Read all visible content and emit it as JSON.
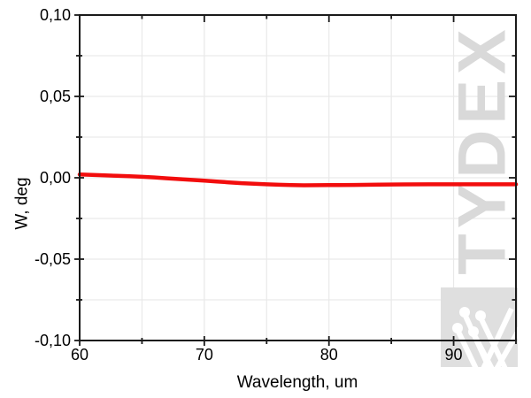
{
  "figure": {
    "background": "#ffffff",
    "frame_color": "#1a1a1a",
    "grid_color": "#e9e9e9",
    "text_color": "#000000"
  },
  "chart_data": {
    "type": "line",
    "title": "",
    "xlabel": "Wavelength, um",
    "ylabel": "W, deg",
    "xlim": [
      60,
      95
    ],
    "ylim": [
      -0.1,
      0.1
    ],
    "x_major_ticks": [
      60,
      70,
      80,
      90
    ],
    "x_minor_ticks": [
      65,
      75,
      85,
      95
    ],
    "y_major_ticks": [
      0.1,
      0.05,
      0.0,
      -0.05,
      -0.1
    ],
    "y_minor_ticks": [
      0.075,
      0.025,
      -0.025,
      -0.075
    ],
    "x_tick_labels": [
      "60",
      "70",
      "80",
      "90"
    ],
    "y_tick_labels": [
      "0,10",
      "0,05",
      "0,00",
      "-0,05",
      "-0,10"
    ],
    "grid": true,
    "legend": "none",
    "series": [
      {
        "name": "W",
        "color": "#f20d0d",
        "line_width": 4.5,
        "x": [
          60,
          61,
          62,
          63,
          64,
          65,
          66,
          67,
          68,
          69,
          70,
          71,
          72,
          73,
          74,
          75,
          76,
          77,
          78,
          80,
          82,
          84,
          86,
          88,
          90,
          92,
          95
        ],
        "y": [
          0.002,
          0.0018,
          0.0015,
          0.0012,
          0.0009,
          0.0006,
          0.0002,
          -0.0003,
          -0.0008,
          -0.0013,
          -0.0018,
          -0.0023,
          -0.0028,
          -0.0033,
          -0.0037,
          -0.004,
          -0.0043,
          -0.0045,
          -0.0046,
          -0.0045,
          -0.0044,
          -0.0042,
          -0.0041,
          -0.004,
          -0.004,
          -0.004,
          -0.004
        ]
      }
    ]
  },
  "watermark": {
    "text": "TYDEX",
    "text_color": "#d9d9d9",
    "logo_bg_color": "#dfdfdf",
    "logo_stroke_color": "#ffffff"
  }
}
